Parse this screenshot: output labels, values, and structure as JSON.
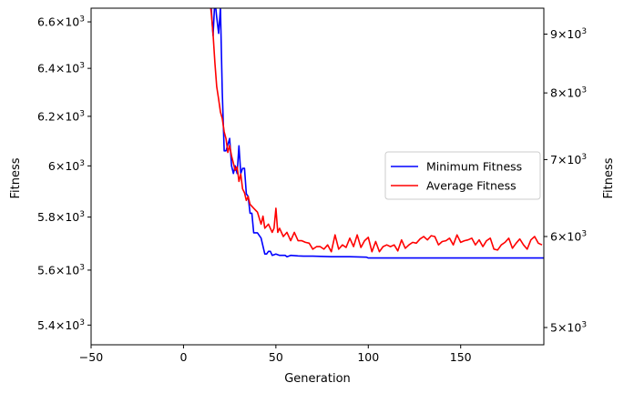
{
  "chart_data": {
    "type": "line",
    "title": "",
    "xlabel": "Generation",
    "ylabel_left": "Fitness",
    "ylabel_right": "Fitness",
    "left_axis_color": "#0000ff",
    "right_axis_color": "#ff0000",
    "xlim": [
      -50,
      195
    ],
    "ylim_left": [
      5330,
      6660
    ],
    "ylim_right": [
      4830,
      9480
    ],
    "y_scale": "log",
    "grid": false,
    "legend_position": "center-right",
    "x_ticks": [
      {
        "value": -50,
        "label": "−50"
      },
      {
        "value": 0,
        "label": "0"
      },
      {
        "value": 50,
        "label": "50"
      },
      {
        "value": 100,
        "label": "100"
      },
      {
        "value": 150,
        "label": "150"
      }
    ],
    "left_ticks": [
      {
        "value": 5400,
        "base": "5.4",
        "exp": "3"
      },
      {
        "value": 5600,
        "base": "5.6",
        "exp": "3"
      },
      {
        "value": 5800,
        "base": "5.8",
        "exp": "3"
      },
      {
        "value": 6000,
        "base": "6",
        "exp": "3"
      },
      {
        "value": 6200,
        "base": "6.2",
        "exp": "3"
      },
      {
        "value": 6400,
        "base": "6.4",
        "exp": "3"
      },
      {
        "value": 6600,
        "base": "6.6",
        "exp": "3"
      }
    ],
    "right_ticks": [
      {
        "value": 5000,
        "base": "5",
        "exp": "3"
      },
      {
        "value": 6000,
        "base": "6",
        "exp": "3"
      },
      {
        "value": 7000,
        "base": "7",
        "exp": "3"
      },
      {
        "value": 8000,
        "base": "8",
        "exp": "3"
      },
      {
        "value": 9000,
        "base": "9",
        "exp": "3"
      }
    ],
    "series": [
      {
        "name": "Minimum Fitness",
        "color": "#0000ff",
        "axis": "left",
        "x": [
          14,
          15,
          16,
          17,
          18,
          19,
          20,
          21,
          22,
          23,
          25,
          26,
          27,
          28,
          29,
          30,
          31,
          32,
          33,
          34,
          35,
          36,
          37,
          38,
          39,
          40,
          42,
          44,
          45,
          46,
          47,
          48,
          50,
          52,
          55,
          56,
          58,
          62,
          65,
          70,
          80,
          90,
          99,
          100,
          110,
          120,
          130,
          140,
          150,
          160,
          170,
          180,
          195
        ],
        "y": [
          6800,
          6660,
          6540,
          6700,
          6620,
          6550,
          6660,
          6300,
          6060,
          6060,
          6110,
          6000,
          5970,
          6000,
          5970,
          6080,
          5970,
          5990,
          5990,
          5890,
          5880,
          5815,
          5815,
          5740,
          5740,
          5740,
          5720,
          5660,
          5660,
          5670,
          5670,
          5655,
          5660,
          5655,
          5655,
          5650,
          5655,
          5653,
          5652,
          5652,
          5650,
          5650,
          5648,
          5645,
          5645,
          5645,
          5645,
          5645,
          5645,
          5645,
          5645,
          5645,
          5645
        ]
      },
      {
        "name": "Average Fitness",
        "color": "#ff0000",
        "axis": "right",
        "x": [
          14,
          15,
          16,
          17,
          18,
          19,
          20,
          21,
          22,
          23,
          24,
          25,
          26,
          27,
          28,
          29,
          30,
          31,
          32,
          33,
          34,
          35,
          36,
          38,
          40,
          42,
          43,
          44,
          46,
          48,
          49,
          50,
          51,
          52,
          54,
          56,
          58,
          60,
          62,
          64,
          66,
          68,
          70,
          72,
          74,
          76,
          78,
          80,
          82,
          84,
          86,
          88,
          90,
          92,
          94,
          96,
          98,
          100,
          102,
          104,
          106,
          108,
          110,
          112,
          114,
          116,
          118,
          120,
          122,
          124,
          126,
          128,
          130,
          132,
          134,
          136,
          138,
          140,
          142,
          144,
          146,
          148,
          150,
          152,
          154,
          156,
          158,
          160,
          162,
          164,
          166,
          168,
          170,
          172,
          174,
          176,
          178,
          180,
          182,
          184,
          186,
          188,
          190,
          192,
          194
        ],
        "y": [
          9700,
          9400,
          9000,
          8500,
          8100,
          7900,
          7700,
          7600,
          7400,
          7300,
          7100,
          7200,
          7050,
          6950,
          6850,
          6900,
          6700,
          6800,
          6600,
          6550,
          6450,
          6500,
          6400,
          6350,
          6300,
          6150,
          6250,
          6100,
          6150,
          6050,
          6100,
          6350,
          6050,
          6100,
          6000,
          6050,
          5950,
          6050,
          5950,
          5950,
          5930,
          5920,
          5850,
          5880,
          5880,
          5850,
          5900,
          5820,
          6020,
          5850,
          5900,
          5870,
          5980,
          5880,
          6020,
          5870,
          5950,
          5990,
          5820,
          5940,
          5820,
          5880,
          5900,
          5880,
          5900,
          5830,
          5960,
          5860,
          5900,
          5930,
          5920,
          5970,
          6000,
          5960,
          6010,
          6000,
          5900,
          5940,
          5950,
          5980,
          5900,
          6020,
          5930,
          5950,
          5960,
          5980,
          5900,
          5960,
          5880,
          5950,
          5980,
          5850,
          5840,
          5900,
          5930,
          5980,
          5860,
          5920,
          5970,
          5900,
          5850,
          5960,
          6000,
          5920,
          5900
        ]
      }
    ]
  }
}
